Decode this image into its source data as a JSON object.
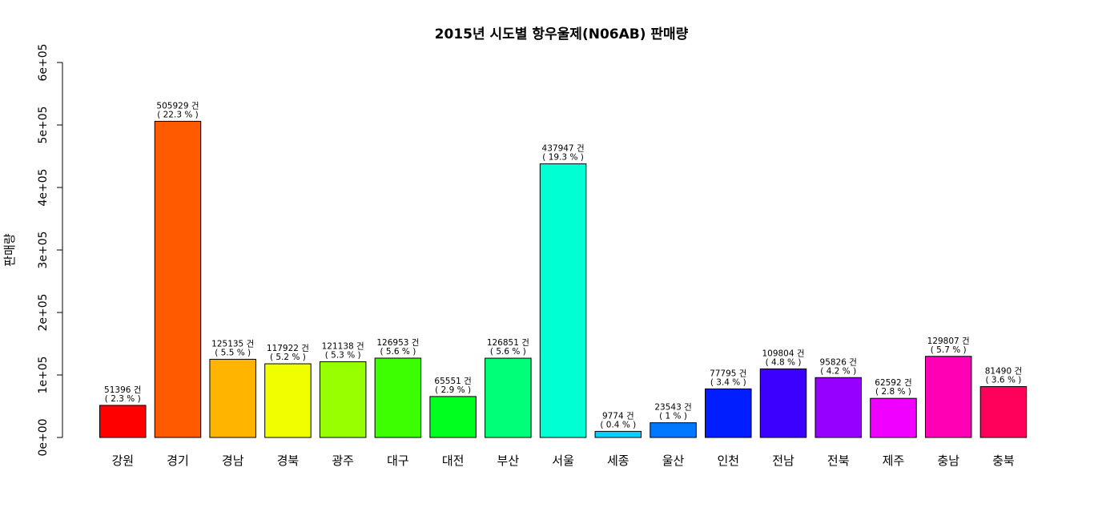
{
  "chart_data": {
    "type": "bar",
    "title": "2015년 시도별 항우울제(N06AB) 판매량",
    "xlabel": "",
    "ylabel": "판매량",
    "ylim": [
      0,
      600000
    ],
    "yticks": [
      0,
      100000,
      200000,
      300000,
      400000,
      500000,
      600000
    ],
    "ytick_labels": [
      "0e+00",
      "1e+05",
      "2e+05",
      "3e+05",
      "4e+05",
      "5e+05",
      "6e+05"
    ],
    "grid": false,
    "legend": "none",
    "categories": [
      "강원",
      "경기",
      "경남",
      "경북",
      "광주",
      "대구",
      "대전",
      "부산",
      "서울",
      "세종",
      "울산",
      "인천",
      "전남",
      "전북",
      "제주",
      "충남",
      "충북"
    ],
    "values": [
      51396,
      505929,
      125135,
      117922,
      121138,
      126953,
      65551,
      126851,
      437947,
      9774,
      23543,
      77795,
      109804,
      95826,
      62592,
      129807,
      81490
    ],
    "count_labels": [
      "51396 건",
      "505929 건",
      "125135 건",
      "117922 건",
      "121138 건",
      "126953 건",
      "65551 건",
      "126851 건",
      "437947 건",
      "9774 건",
      "23543 건",
      "77795 건",
      "109804 건",
      "95826 건",
      "62592 건",
      "129807 건",
      "81490 건"
    ],
    "percent_labels": [
      "( 2.3 % )",
      "( 22.3 % )",
      "( 5.5 % )",
      "( 5.2 % )",
      "( 5.3 % )",
      "( 5.6 % )",
      "( 2.9 % )",
      "( 5.6 % )",
      "( 19.3 % )",
      "( 0.4 % )",
      "( 1 % )",
      "( 3.4 % )",
      "( 4.8 % )",
      "( 4.2 % )",
      "( 2.8 % )",
      "( 5.7 % )",
      "( 3.6 % )"
    ],
    "colors": [
      "#FF0000",
      "#FF5A00",
      "#FFB400",
      "#F0FF00",
      "#96FF00",
      "#3CFF00",
      "#00FF1E",
      "#00FF78",
      "#00FFD2",
      "#00D2FF",
      "#0078FF",
      "#001EFF",
      "#3C00FF",
      "#9600FF",
      "#F000FF",
      "#FF00B4",
      "#FF005A"
    ]
  }
}
